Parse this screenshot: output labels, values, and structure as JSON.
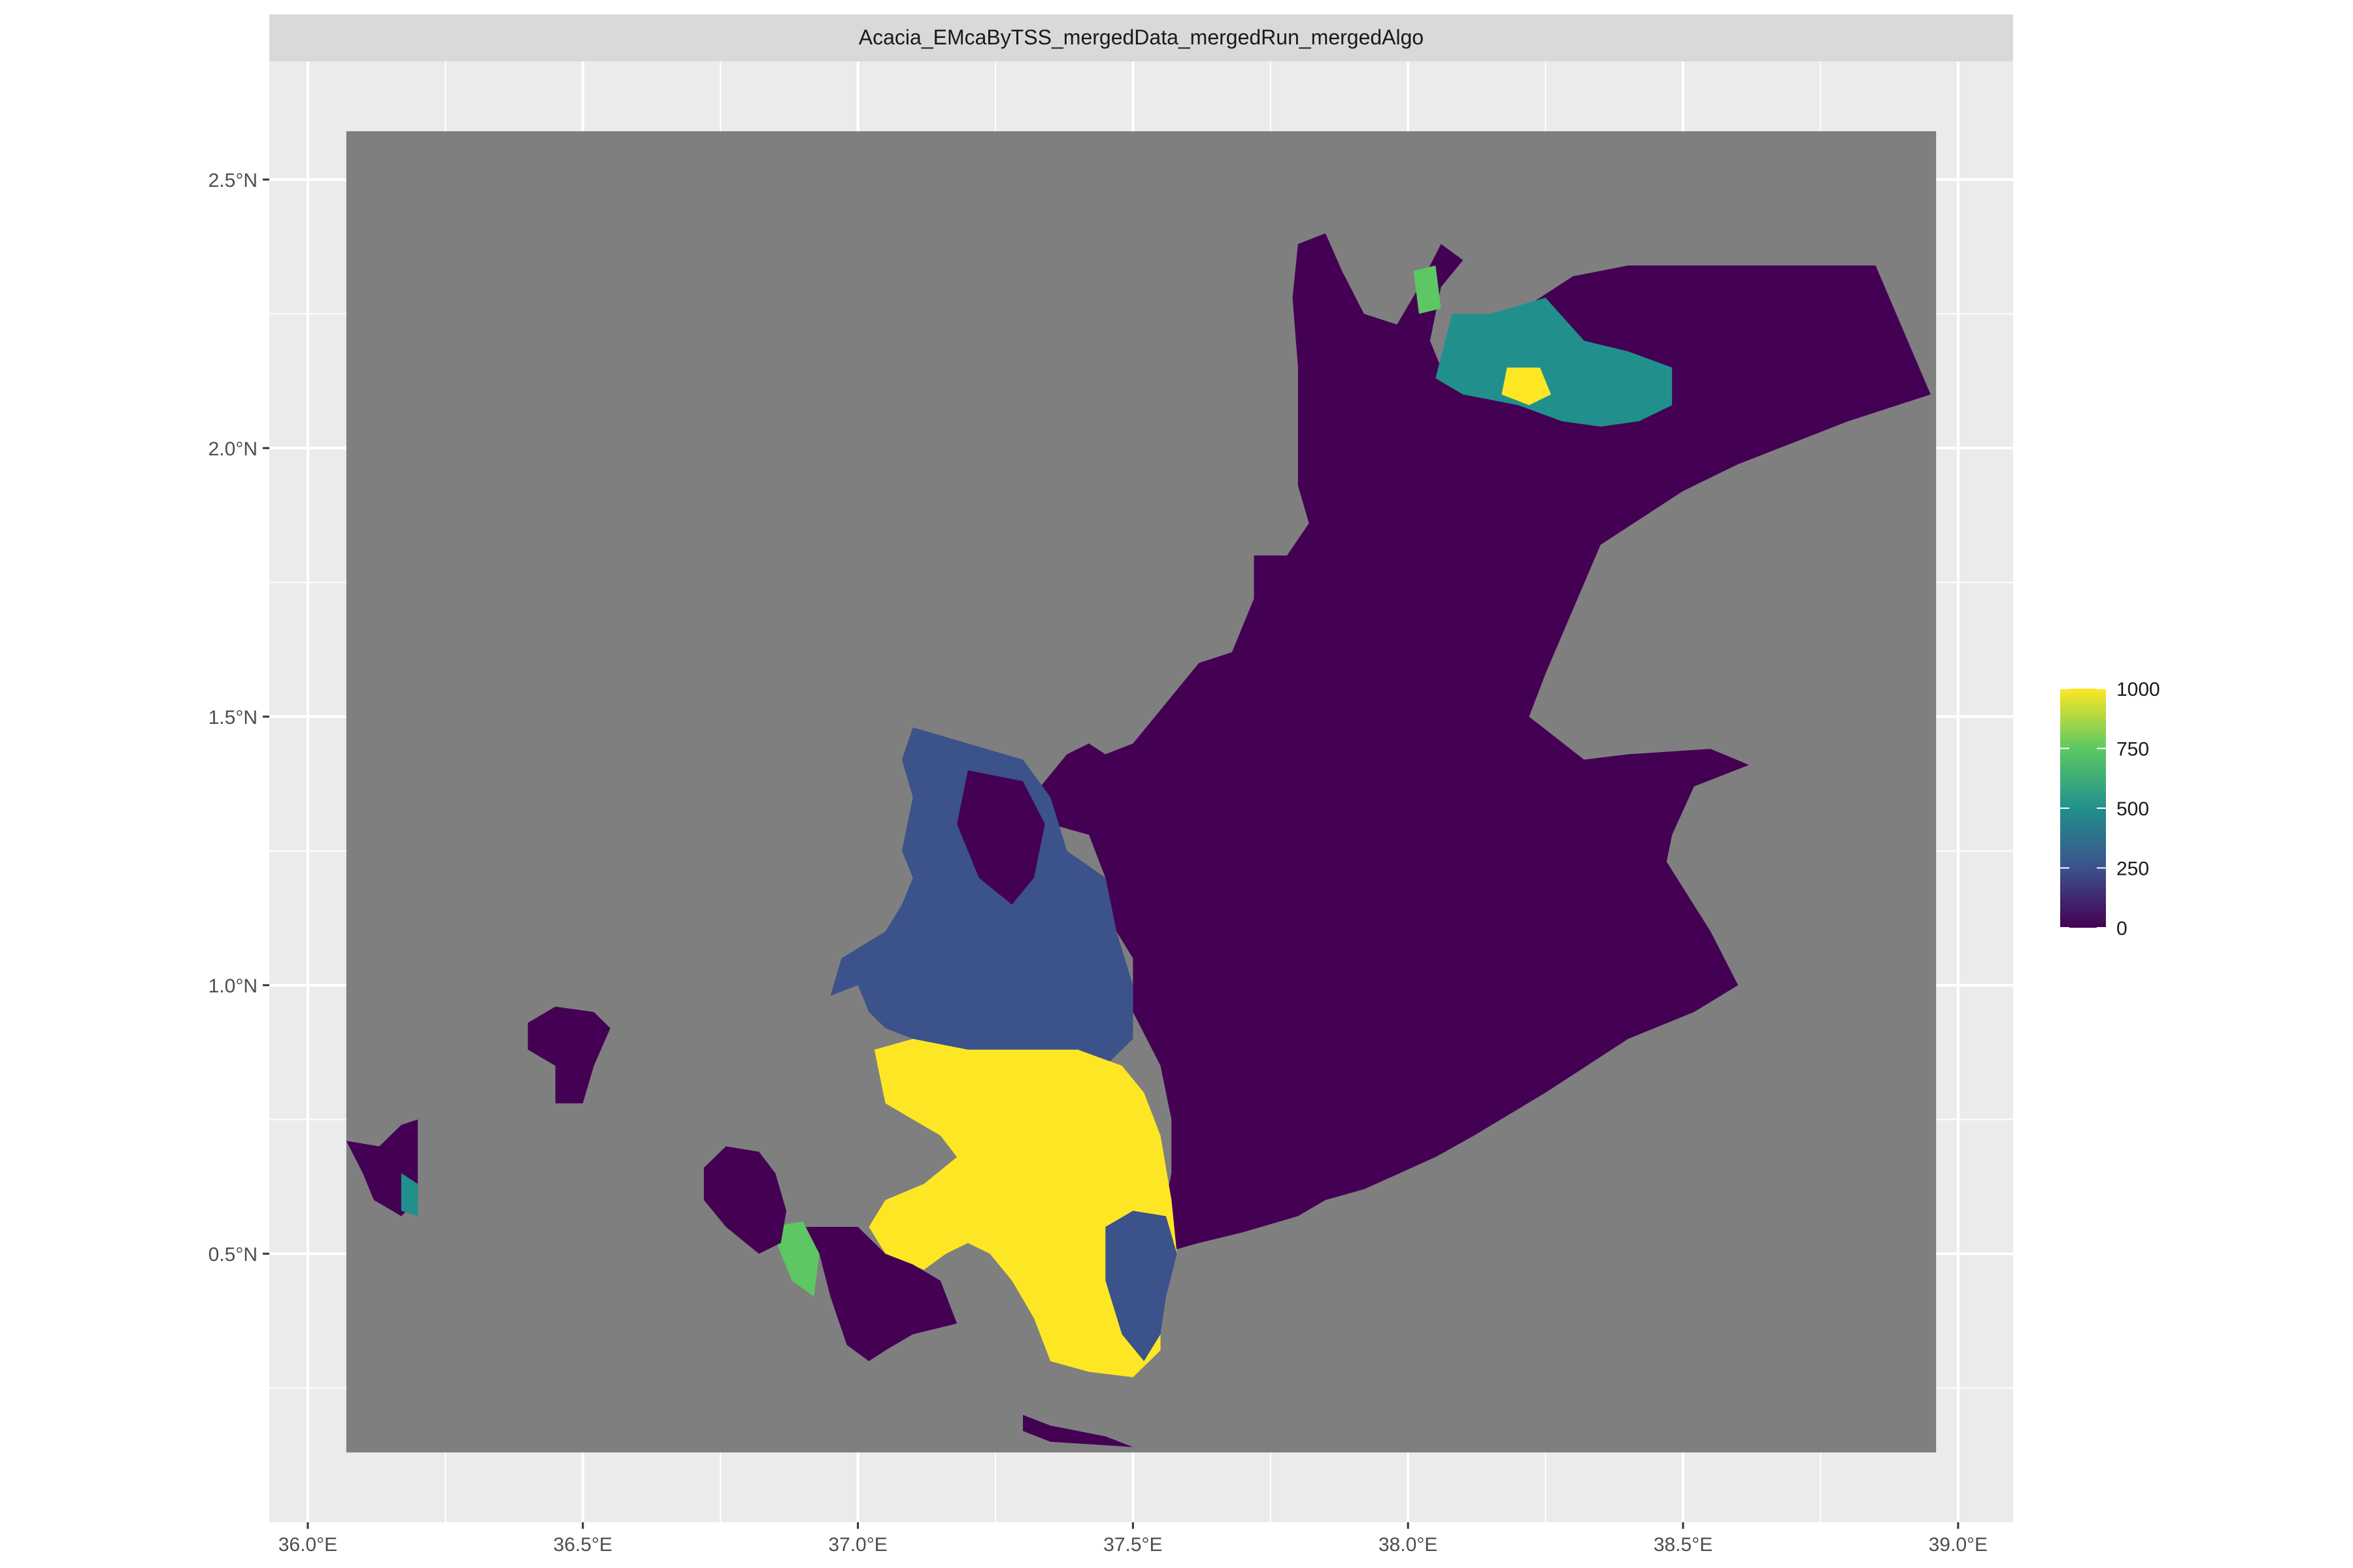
{
  "facet_title": "Acacia_EMcaByTSS_mergedData_mergedRun_mergedAlgo",
  "colors": {
    "panel_bg": "#EBEBEB",
    "grid": "#FFFFFF",
    "strip_bg": "#D9D9D9",
    "na_value": "#7F7F7F",
    "viridis": [
      "#440154",
      "#3B528B",
      "#21908C",
      "#5DC863",
      "#FDE725"
    ]
  },
  "chart_data": {
    "type": "heatmap",
    "title": "Acacia_EMcaByTSS_mergedData_mergedRun_mergedAlgo",
    "xlabel": "",
    "ylabel": "",
    "xlim": [
      35.93,
      39.1
    ],
    "ylim": [
      0.0,
      2.72
    ],
    "raster_extent": {
      "lon": [
        36.07,
        38.96
      ],
      "lat": [
        0.13,
        2.59
      ]
    },
    "x_ticks": [
      {
        "value": 36.0,
        "label": "36.0°E"
      },
      {
        "value": 36.5,
        "label": "36.5°E"
      },
      {
        "value": 37.0,
        "label": "37.0°E"
      },
      {
        "value": 37.5,
        "label": "37.5°E"
      },
      {
        "value": 38.0,
        "label": "38.0°E"
      },
      {
        "value": 38.5,
        "label": "38.5°E"
      },
      {
        "value": 39.0,
        "label": "39.0°E"
      }
    ],
    "y_ticks": [
      {
        "value": 0.5,
        "label": "0.5°N"
      },
      {
        "value": 1.0,
        "label": "1.0°N"
      },
      {
        "value": 1.5,
        "label": "1.5°N"
      },
      {
        "value": 2.0,
        "label": "2.0°N"
      },
      {
        "value": 2.5,
        "label": "2.5°N"
      }
    ],
    "legend": {
      "title": "",
      "placement": "right",
      "range": [
        0,
        1000
      ],
      "breaks": [
        {
          "value": 1000,
          "label": "1000"
        },
        {
          "value": 750,
          "label": "750"
        },
        {
          "value": 500,
          "label": "500"
        },
        {
          "value": 250,
          "label": "250"
        },
        {
          "value": 0,
          "label": "0"
        }
      ]
    },
    "regions": [
      {
        "name": "main",
        "value": 0,
        "coords": [
          [
            37.3,
            1.33
          ],
          [
            37.38,
            1.43
          ],
          [
            37.42,
            1.45
          ],
          [
            37.45,
            1.43
          ],
          [
            37.5,
            1.45
          ],
          [
            37.62,
            1.6
          ],
          [
            37.68,
            1.62
          ],
          [
            37.72,
            1.72
          ],
          [
            37.72,
            1.8
          ],
          [
            37.78,
            1.8
          ],
          [
            37.82,
            1.86
          ],
          [
            37.8,
            1.93
          ],
          [
            37.8,
            2.05
          ],
          [
            37.8,
            2.15
          ],
          [
            37.79,
            2.28
          ],
          [
            37.8,
            2.38
          ],
          [
            37.85,
            2.4
          ],
          [
            37.88,
            2.33
          ],
          [
            37.92,
            2.25
          ],
          [
            37.98,
            2.23
          ],
          [
            38.02,
            2.3
          ],
          [
            38.06,
            2.38
          ],
          [
            38.1,
            2.35
          ],
          [
            38.06,
            2.3
          ],
          [
            38.04,
            2.2
          ],
          [
            38.06,
            2.15
          ],
          [
            38.15,
            2.22
          ],
          [
            38.3,
            2.32
          ],
          [
            38.4,
            2.34
          ],
          [
            38.85,
            2.34
          ],
          [
            38.95,
            2.1
          ],
          [
            38.8,
            2.05
          ],
          [
            38.6,
            1.97
          ],
          [
            38.5,
            1.92
          ],
          [
            38.35,
            1.82
          ],
          [
            38.3,
            1.7
          ],
          [
            38.25,
            1.58
          ],
          [
            38.22,
            1.5
          ],
          [
            38.32,
            1.42
          ],
          [
            38.4,
            1.43
          ],
          [
            38.55,
            1.44
          ],
          [
            38.62,
            1.41
          ],
          [
            38.52,
            1.37
          ],
          [
            38.48,
            1.28
          ],
          [
            38.47,
            1.23
          ],
          [
            38.55,
            1.1
          ],
          [
            38.6,
            1.0
          ],
          [
            38.52,
            0.95
          ],
          [
            38.4,
            0.9
          ],
          [
            38.25,
            0.8
          ],
          [
            38.12,
            0.72
          ],
          [
            38.05,
            0.68
          ],
          [
            37.92,
            0.62
          ],
          [
            37.85,
            0.6
          ],
          [
            37.8,
            0.57
          ],
          [
            37.7,
            0.54
          ],
          [
            37.62,
            0.52
          ],
          [
            37.55,
            0.5
          ],
          [
            37.55,
            0.55
          ],
          [
            37.57,
            0.65
          ],
          [
            37.57,
            0.75
          ],
          [
            37.55,
            0.85
          ],
          [
            37.5,
            0.95
          ],
          [
            37.5,
            1.05
          ],
          [
            37.47,
            1.1
          ],
          [
            37.45,
            1.2
          ],
          [
            37.42,
            1.28
          ],
          [
            37.35,
            1.3
          ]
        ]
      },
      {
        "name": "west-strip",
        "value": 250,
        "coords": [
          [
            37.1,
            1.48
          ],
          [
            37.2,
            1.45
          ],
          [
            37.3,
            1.42
          ],
          [
            37.35,
            1.35
          ],
          [
            37.38,
            1.25
          ],
          [
            37.45,
            1.2
          ],
          [
            37.47,
            1.1
          ],
          [
            37.5,
            1.0
          ],
          [
            37.5,
            0.9
          ],
          [
            37.45,
            0.85
          ],
          [
            37.38,
            0.87
          ],
          [
            37.28,
            0.86
          ],
          [
            37.22,
            0.85
          ],
          [
            37.15,
            0.85
          ],
          [
            37.1,
            0.9
          ],
          [
            37.05,
            0.92
          ],
          [
            37.02,
            0.95
          ],
          [
            37.0,
            1.0
          ],
          [
            36.95,
            0.98
          ],
          [
            36.97,
            1.05
          ],
          [
            37.05,
            1.1
          ],
          [
            37.08,
            1.15
          ],
          [
            37.1,
            1.2
          ],
          [
            37.08,
            1.25
          ],
          [
            37.1,
            1.35
          ],
          [
            37.08,
            1.42
          ]
        ]
      },
      {
        "name": "strip-core",
        "value": 0,
        "coords": [
          [
            37.2,
            1.4
          ],
          [
            37.3,
            1.38
          ],
          [
            37.34,
            1.3
          ],
          [
            37.32,
            1.2
          ],
          [
            37.28,
            1.15
          ],
          [
            37.22,
            1.2
          ],
          [
            37.18,
            1.3
          ]
        ]
      },
      {
        "name": "south-block",
        "value": 1000,
        "coords": [
          [
            37.03,
            0.88
          ],
          [
            37.1,
            0.9
          ],
          [
            37.2,
            0.88
          ],
          [
            37.3,
            0.88
          ],
          [
            37.4,
            0.88
          ],
          [
            37.48,
            0.85
          ],
          [
            37.52,
            0.8
          ],
          [
            37.55,
            0.72
          ],
          [
            37.57,
            0.6
          ],
          [
            37.58,
            0.5
          ],
          [
            37.55,
            0.42
          ],
          [
            37.55,
            0.32
          ],
          [
            37.5,
            0.27
          ],
          [
            37.42,
            0.28
          ],
          [
            37.35,
            0.3
          ],
          [
            37.32,
            0.38
          ],
          [
            37.28,
            0.45
          ],
          [
            37.24,
            0.5
          ],
          [
            37.2,
            0.52
          ],
          [
            37.16,
            0.5
          ],
          [
            37.12,
            0.47
          ],
          [
            37.05,
            0.5
          ],
          [
            37.02,
            0.55
          ],
          [
            37.05,
            0.6
          ],
          [
            37.12,
            0.63
          ],
          [
            37.18,
            0.68
          ],
          [
            37.15,
            0.72
          ],
          [
            37.1,
            0.75
          ],
          [
            37.05,
            0.78
          ]
        ]
      },
      {
        "name": "south-block-east",
        "value": 250,
        "coords": [
          [
            37.45,
            0.55
          ],
          [
            37.5,
            0.58
          ],
          [
            37.56,
            0.57
          ],
          [
            37.58,
            0.5
          ],
          [
            37.56,
            0.42
          ],
          [
            37.55,
            0.35
          ],
          [
            37.52,
            0.3
          ],
          [
            37.48,
            0.35
          ],
          [
            37.45,
            0.45
          ]
        ]
      },
      {
        "name": "lower-shape",
        "value": 0,
        "coords": [
          [
            36.9,
            0.55
          ],
          [
            37.0,
            0.55
          ],
          [
            37.05,
            0.5
          ],
          [
            37.1,
            0.48
          ],
          [
            37.15,
            0.45
          ],
          [
            37.18,
            0.37
          ],
          [
            37.1,
            0.35
          ],
          [
            37.05,
            0.32
          ],
          [
            37.02,
            0.3
          ],
          [
            36.98,
            0.33
          ],
          [
            36.95,
            0.42
          ],
          [
            36.93,
            0.5
          ]
        ]
      },
      {
        "name": "green-tri",
        "value": 750,
        "coords": [
          [
            36.84,
            0.55
          ],
          [
            36.9,
            0.56
          ],
          [
            36.93,
            0.5
          ],
          [
            36.92,
            0.42
          ],
          [
            36.88,
            0.45
          ]
        ]
      },
      {
        "name": "blob-mid",
        "value": 0,
        "coords": [
          [
            36.72,
            0.66
          ],
          [
            36.76,
            0.7
          ],
          [
            36.82,
            0.69
          ],
          [
            36.85,
            0.65
          ],
          [
            36.87,
            0.58
          ],
          [
            36.86,
            0.52
          ],
          [
            36.82,
            0.5
          ],
          [
            36.76,
            0.55
          ],
          [
            36.72,
            0.6
          ]
        ]
      },
      {
        "name": "blob-left",
        "value": 0,
        "coords": [
          [
            36.4,
            0.93
          ],
          [
            36.45,
            0.96
          ],
          [
            36.52,
            0.95
          ],
          [
            36.55,
            0.92
          ],
          [
            36.52,
            0.85
          ],
          [
            36.5,
            0.78
          ],
          [
            36.45,
            0.78
          ],
          [
            36.45,
            0.85
          ],
          [
            36.4,
            0.88
          ]
        ]
      },
      {
        "name": "west-edge-left",
        "value": 0,
        "coords": [
          [
            36.07,
            0.71
          ],
          [
            36.13,
            0.7
          ],
          [
            36.17,
            0.74
          ],
          [
            36.2,
            0.75
          ],
          [
            36.2,
            0.68
          ],
          [
            36.2,
            0.6
          ],
          [
            36.17,
            0.57
          ],
          [
            36.12,
            0.6
          ],
          [
            36.1,
            0.65
          ]
        ]
      },
      {
        "name": "west-edge-spot",
        "value": 500,
        "coords": [
          [
            36.17,
            0.65
          ],
          [
            36.2,
            0.63
          ],
          [
            36.2,
            0.57
          ],
          [
            36.17,
            0.58
          ]
        ]
      },
      {
        "name": "bottom-sliver",
        "value": 0,
        "coords": [
          [
            37.3,
            0.2
          ],
          [
            37.35,
            0.18
          ],
          [
            37.45,
            0.16
          ],
          [
            37.5,
            0.14
          ],
          [
            37.35,
            0.15
          ],
          [
            37.3,
            0.17
          ]
        ]
      },
      {
        "name": "ne-patch",
        "value": 500,
        "coords": [
          [
            38.08,
            2.25
          ],
          [
            38.15,
            2.25
          ],
          [
            38.25,
            2.28
          ],
          [
            38.32,
            2.2
          ],
          [
            38.4,
            2.18
          ],
          [
            38.48,
            2.15
          ],
          [
            38.48,
            2.08
          ],
          [
            38.42,
            2.05
          ],
          [
            38.35,
            2.04
          ],
          [
            38.28,
            2.05
          ],
          [
            38.2,
            2.08
          ],
          [
            38.1,
            2.1
          ],
          [
            38.05,
            2.13
          ]
        ]
      },
      {
        "name": "ne-core",
        "value": 1000,
        "coords": [
          [
            38.18,
            2.15
          ],
          [
            38.24,
            2.15
          ],
          [
            38.26,
            2.1
          ],
          [
            38.22,
            2.08
          ],
          [
            38.17,
            2.1
          ]
        ]
      },
      {
        "name": "north-tip",
        "value": 750,
        "coords": [
          [
            38.01,
            2.33
          ],
          [
            38.05,
            2.34
          ],
          [
            38.06,
            2.26
          ],
          [
            38.02,
            2.25
          ]
        ]
      }
    ]
  }
}
